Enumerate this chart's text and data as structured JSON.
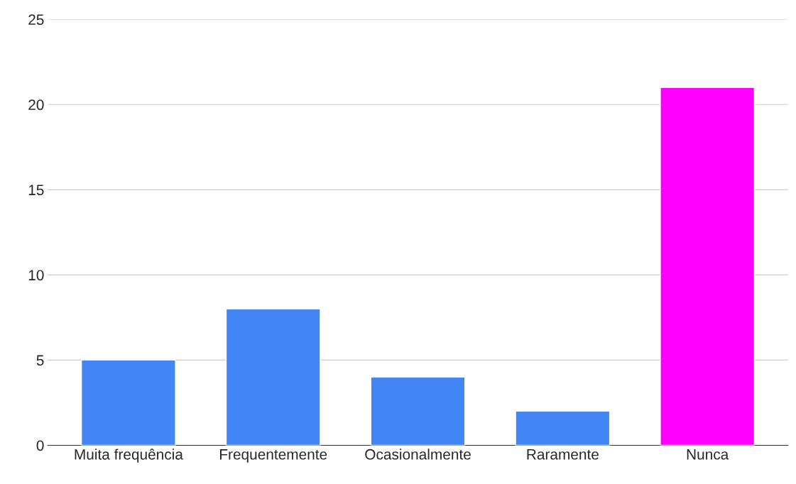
{
  "chart_data": {
    "type": "bar",
    "categories": [
      "Muita frequência",
      "Frequentemente",
      "Ocasionalmente",
      "Raramente",
      "Nunca"
    ],
    "values": [
      5,
      8,
      4,
      2,
      21
    ],
    "colors": [
      "#4285f4",
      "#4285f4",
      "#4285f4",
      "#4285f4",
      "#ff00ff"
    ],
    "ylim": [
      0,
      25
    ],
    "yticks": [
      0,
      5,
      10,
      15,
      20,
      25
    ],
    "grid": "y"
  }
}
